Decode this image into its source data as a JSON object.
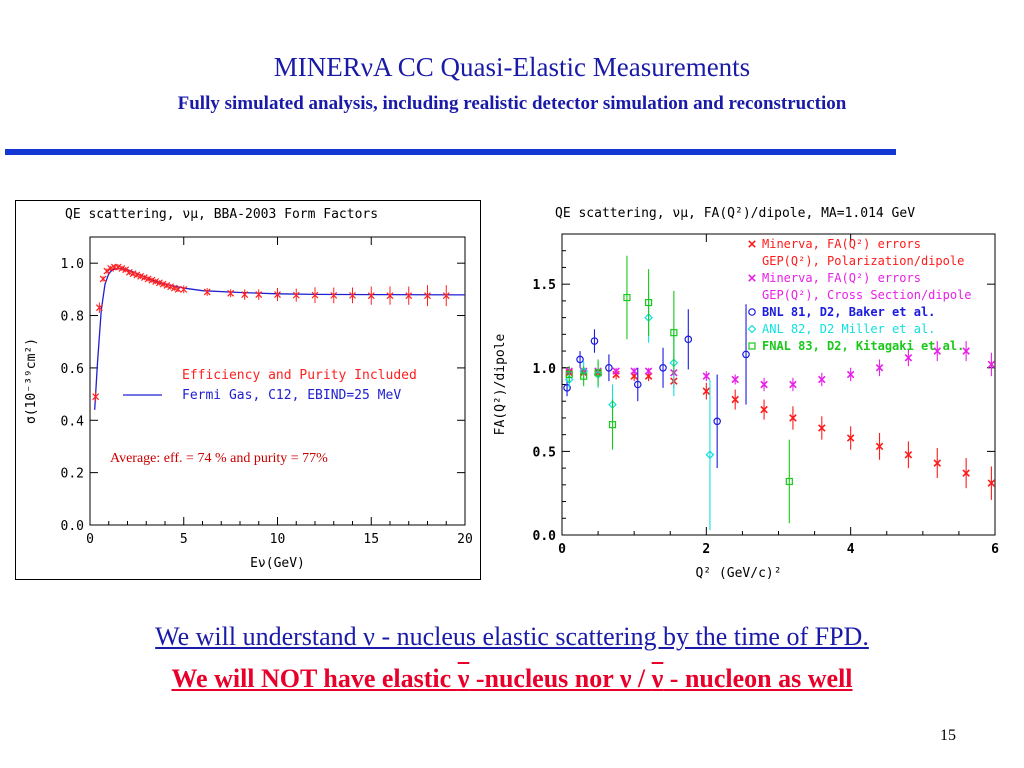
{
  "slide": {
    "title": "MINERνA CC Quasi-Elastic Measurements",
    "subtitle": "Fully simulated analysis, including realistic detector simulation and reconstruction",
    "line1": "We will understand ν - nucleus elastic scattering by the time of FPD.",
    "line2_parts": [
      "We will NOT have elastic ",
      "ν",
      " -nucleus nor ν / ",
      "ν",
      " - nucleon as well"
    ],
    "page_number": "15"
  },
  "chart_data": [
    {
      "type": "line",
      "title": "QE scattering, νμ, BBA-2003 Form Factors",
      "xlabel": "Eν(GeV)",
      "ylabel": "σ(10⁻³⁹cm²)",
      "xlim": [
        0,
        20
      ],
      "ylim": [
        0,
        1.1
      ],
      "xticks": [
        "0",
        "5",
        "10",
        "15",
        "20"
      ],
      "yticks": [
        "0.0",
        "0.2",
        "0.4",
        "0.6",
        "0.8",
        "1.0"
      ],
      "legend": {
        "position": "center-right",
        "entries": [
          "Efficiency and Purity Included",
          "Fermi Gas, C12, EBIND=25 MeV"
        ]
      },
      "annotation": "Average: eff. = 74 % and purity = 77%",
      "series": [
        {
          "name": "Fermi Gas, C12, EBIND=25 MeV",
          "style": "line",
          "color": "#2020d0",
          "x": [
            0.25,
            0.4,
            0.6,
            0.8,
            1.0,
            1.2,
            1.5,
            2.0,
            2.5,
            3.0,
            3.5,
            4.0,
            5.0,
            6.0,
            8.0,
            10.0,
            12.0,
            15.0,
            20.0
          ],
          "y": [
            0.44,
            0.62,
            0.82,
            0.92,
            0.96,
            0.975,
            0.98,
            0.975,
            0.96,
            0.945,
            0.93,
            0.92,
            0.905,
            0.895,
            0.888,
            0.883,
            0.881,
            0.88,
            0.879
          ]
        },
        {
          "name": "Efficiency and Purity Included",
          "style": "points",
          "color": "#ff2020",
          "x": [
            0.3,
            0.5,
            0.7,
            0.9,
            1.1,
            1.3,
            1.5,
            1.7,
            1.9,
            2.1,
            2.3,
            2.5,
            2.7,
            2.9,
            3.1,
            3.3,
            3.5,
            3.7,
            3.9,
            4.1,
            4.3,
            4.5,
            4.7,
            5.0,
            6.25,
            7.5,
            8.25,
            9.0,
            10.0,
            11.0,
            12.0,
            13.0,
            14.0,
            15.0,
            16.0,
            17.0,
            18.0,
            19.0
          ],
          "y": [
            0.49,
            0.83,
            0.94,
            0.97,
            0.98,
            0.985,
            0.985,
            0.98,
            0.975,
            0.965,
            0.96,
            0.955,
            0.95,
            0.945,
            0.94,
            0.935,
            0.93,
            0.925,
            0.92,
            0.915,
            0.91,
            0.905,
            0.9,
            0.9,
            0.89,
            0.885,
            0.88,
            0.88,
            0.88,
            0.878,
            0.878,
            0.877,
            0.877,
            0.876,
            0.876,
            0.876,
            0.876,
            0.876
          ],
          "yerr": [
            0.02,
            0.02,
            0.01,
            0.01,
            0.01,
            0.01,
            0.01,
            0.01,
            0.01,
            0.01,
            0.01,
            0.01,
            0.01,
            0.01,
            0.01,
            0.01,
            0.01,
            0.01,
            0.01,
            0.01,
            0.01,
            0.01,
            0.01,
            0.015,
            0.015,
            0.015,
            0.02,
            0.02,
            0.025,
            0.025,
            0.03,
            0.03,
            0.03,
            0.035,
            0.035,
            0.035,
            0.04,
            0.04
          ]
        }
      ]
    },
    {
      "type": "scatter",
      "title": "QE scattering, νμ, FA(Q²)/dipole, MA=1.014 GeV",
      "xlabel": "Q² (GeV/c)²",
      "ylabel": "FA(Q²)/dipole",
      "xlim": [
        0,
        6
      ],
      "ylim": [
        0,
        1.8
      ],
      "xticks": [
        "0",
        "2",
        "4",
        "6"
      ],
      "yticks": [
        "0.0",
        "0.5",
        "1.0",
        "1.5"
      ],
      "legend": {
        "position": "top-right",
        "entries": [
          "Minerva, FA(Q²) errors",
          "GEP(Q²), Polarization/dipole",
          "Minerva, FA(Q²) errors",
          "GEP(Q²), Cross Section/dipole",
          "BNL 81, D2, Baker et al.",
          "ANL 82, D2 Miller et al.",
          "FNAL 83, D2, Kitagaki et al."
        ]
      },
      "series": [
        {
          "name": "Minerva, FA(Q²) errors / GEP(Q²), Polarization/dipole",
          "marker": "x",
          "color": "#ff1a1a",
          "x": [
            0.1,
            0.3,
            0.5,
            0.75,
            1.0,
            1.2,
            1.55,
            2.0,
            2.4,
            2.8,
            3.2,
            3.6,
            4.0,
            4.4,
            4.8,
            5.2,
            5.6,
            5.95
          ],
          "y": [
            0.97,
            0.97,
            0.97,
            0.96,
            0.95,
            0.95,
            0.92,
            0.86,
            0.81,
            0.75,
            0.7,
            0.64,
            0.58,
            0.53,
            0.48,
            0.43,
            0.37,
            0.31
          ],
          "yerr": [
            0.02,
            0.02,
            0.02,
            0.03,
            0.03,
            0.03,
            0.04,
            0.05,
            0.06,
            0.06,
            0.07,
            0.07,
            0.07,
            0.08,
            0.08,
            0.09,
            0.09,
            0.1
          ]
        },
        {
          "name": "Minerva, FA(Q²) errors / GEP(Q²), Cross Section/dipole",
          "marker": "x",
          "color": "#e820e8",
          "x": [
            0.1,
            0.3,
            0.5,
            0.75,
            1.0,
            1.2,
            1.55,
            2.0,
            2.4,
            2.8,
            3.2,
            3.6,
            4.0,
            4.4,
            4.8,
            5.2,
            5.6,
            5.95
          ],
          "y": [
            0.98,
            0.98,
            0.98,
            0.98,
            0.98,
            0.98,
            0.97,
            0.95,
            0.93,
            0.9,
            0.9,
            0.93,
            0.96,
            1.0,
            1.06,
            1.1,
            1.1,
            1.02
          ],
          "yerr": [
            0.02,
            0.02,
            0.02,
            0.02,
            0.02,
            0.02,
            0.02,
            0.03,
            0.03,
            0.04,
            0.04,
            0.04,
            0.04,
            0.05,
            0.05,
            0.06,
            0.06,
            0.07
          ]
        },
        {
          "name": "BNL 81, D2, Baker et al.",
          "marker": "circle",
          "color": "#1a1ae0",
          "x": [
            0.07,
            0.25,
            0.45,
            0.65,
            1.05,
            1.4,
            1.75,
            2.15,
            2.55
          ],
          "y": [
            0.88,
            1.05,
            1.16,
            1.0,
            0.9,
            1.0,
            1.17,
            0.68,
            1.08
          ],
          "yerr": [
            0.05,
            0.05,
            0.07,
            0.08,
            0.1,
            0.12,
            0.18,
            0.28,
            0.3
          ]
        },
        {
          "name": "ANL 82, D2 Miller et al.",
          "marker": "diamond",
          "color": "#10e0e0",
          "x": [
            0.1,
            0.3,
            0.5,
            0.7,
            1.2,
            1.55,
            2.05
          ],
          "y": [
            0.93,
            0.98,
            0.96,
            0.78,
            1.3,
            1.03,
            0.48
          ],
          "yerr": [
            0.05,
            0.06,
            0.08,
            0.12,
            0.15,
            0.2,
            0.45
          ]
        },
        {
          "name": "FNAL 83, D2, Kitagaki et al.",
          "marker": "square",
          "color": "#1ac81a",
          "x": [
            0.1,
            0.3,
            0.5,
            0.7,
            0.9,
            1.2,
            1.55,
            3.15
          ],
          "y": [
            0.96,
            0.95,
            0.97,
            0.66,
            1.42,
            1.39,
            1.21,
            0.32
          ],
          "yerr": [
            0.05,
            0.06,
            0.08,
            0.15,
            0.25,
            0.2,
            0.25,
            0.25
          ]
        }
      ]
    }
  ]
}
